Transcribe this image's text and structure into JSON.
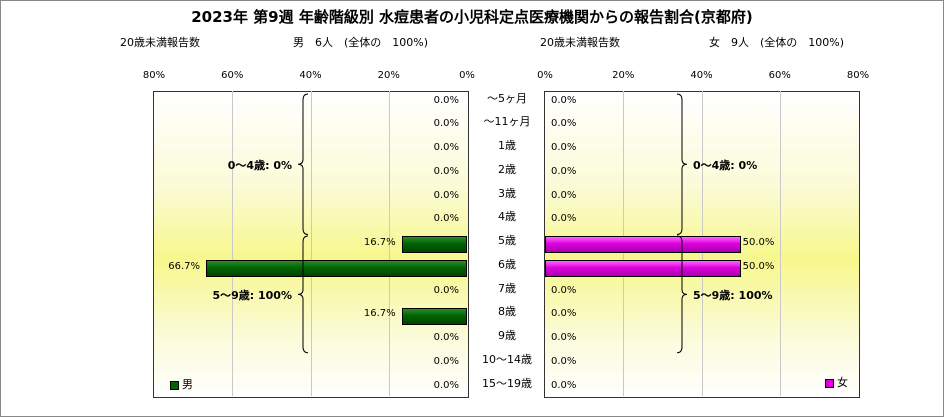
{
  "chart_data": {
    "type": "bar",
    "title": "2023年 第9週 年齢階級別 水痘患者の小児科定点医療機関からの報告割合(京都府)",
    "categories": [
      "～5ヶ月",
      "～11ヶ月",
      "1歳",
      "2歳",
      "3歳",
      "4歳",
      "5歳",
      "6歳",
      "7歳",
      "8歳",
      "9歳",
      "10～14歳",
      "15～19歳"
    ],
    "x_ticks": [
      "80%",
      "60%",
      "40%",
      "20%",
      "0%"
    ],
    "x_ticks_right": [
      "0%",
      "20%",
      "40%",
      "60%",
      "80%"
    ],
    "xlim": [
      0,
      80
    ],
    "grid": true,
    "series": [
      {
        "name": "男",
        "color": "#006400",
        "subtitle_left": "20歳未満報告数",
        "subtitle_right": "男　6人　(全体の　100%)",
        "values": [
          0,
          0,
          0,
          0,
          0,
          0,
          16.7,
          66.7,
          0,
          16.7,
          0,
          0,
          0
        ],
        "labels": [
          "0.0%",
          "0.0%",
          "0.0%",
          "0.0%",
          "0.0%",
          "0.0%",
          "16.7%",
          "66.7%",
          "0.0%",
          "16.7%",
          "0.0%",
          "0.0%",
          "0.0%"
        ],
        "groups": [
          {
            "label": "0～4歳: 0%",
            "from": 0,
            "to": 5
          },
          {
            "label": "5～9歳: 100%",
            "from": 6,
            "to": 10
          }
        ],
        "legend_position": "bottom-left"
      },
      {
        "name": "女",
        "color": "#dd00dd",
        "subtitle_left": "20歳未満報告数",
        "subtitle_right": "女　9人　(全体の　100%)",
        "values": [
          0,
          0,
          0,
          0,
          0,
          0,
          50,
          50,
          0,
          0,
          0,
          0,
          0
        ],
        "labels": [
          "0.0%",
          "0.0%",
          "0.0%",
          "0.0%",
          "0.0%",
          "0.0%",
          "50.0%",
          "50.0%",
          "0.0%",
          "0.0%",
          "0.0%",
          "0.0%",
          "0.0%"
        ],
        "groups": [
          {
            "label": "0～4歳: 0%",
            "from": 0,
            "to": 5
          },
          {
            "label": "5～9歳: 100%",
            "from": 6,
            "to": 10
          }
        ],
        "legend_position": "bottom-right"
      }
    ]
  }
}
